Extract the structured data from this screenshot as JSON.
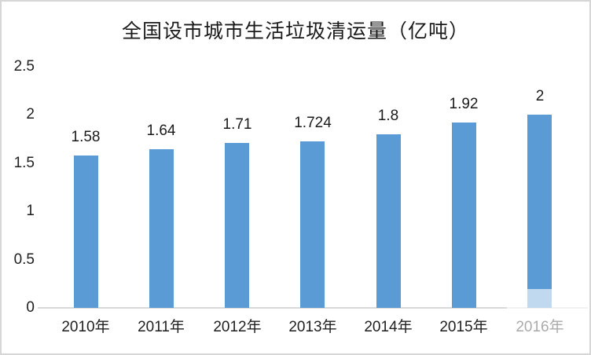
{
  "chart_data": {
    "type": "bar",
    "title": "全国设市城市生活垃圾清运量（亿吨）",
    "categories": [
      "2010年",
      "2011年",
      "2012年",
      "2013年",
      "2014年",
      "2015年",
      "2016年"
    ],
    "values": [
      1.58,
      1.64,
      1.71,
      1.724,
      1.8,
      1.92,
      2
    ],
    "data_labels": [
      "1.58",
      "1.64",
      "1.71",
      "1.724",
      "1.8",
      "1.92",
      "2"
    ],
    "xlabel": "",
    "ylabel": "",
    "ylim": [
      0,
      2.5
    ],
    "ytick_labels": [
      "0",
      "0.5",
      "1",
      "1.5",
      "2",
      "2.5"
    ],
    "ytick_values": [
      0,
      0.5,
      1,
      1.5,
      2,
      2.5
    ],
    "grid": false,
    "legend": "none",
    "colors": {
      "bar": "#5b9bd5",
      "axis_line": "#d9d9d9",
      "text": "#1a1a1a",
      "frame_border": "#d6d6d6",
      "background": "#ffffff"
    },
    "notes": {
      "watermark": "semi-transparent white patch fading the bottom of the 2016 bar and its axis label"
    }
  }
}
